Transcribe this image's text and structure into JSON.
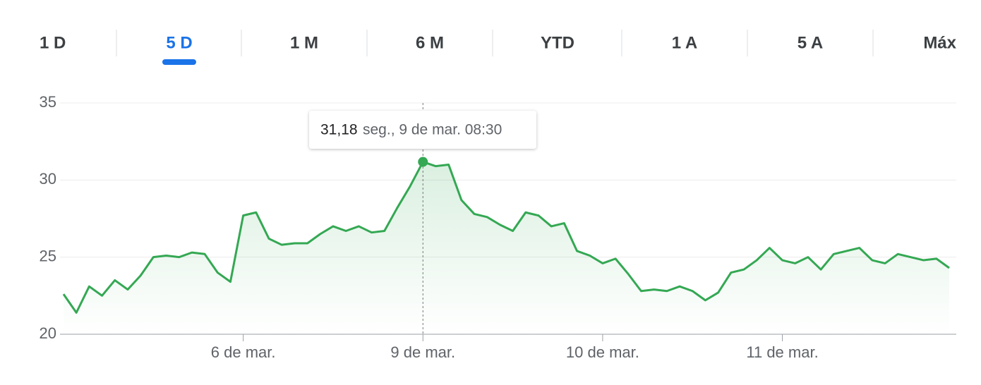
{
  "tabs": {
    "items": [
      "1 D",
      "5 D",
      "1 M",
      "6 M",
      "YTD",
      "1 A",
      "5 A",
      "Máx"
    ],
    "active": 1
  },
  "chart_data": {
    "type": "line",
    "color": "#34a853",
    "categories": [
      null,
      null,
      null,
      null,
      null,
      null,
      null,
      null,
      null,
      null,
      null,
      null,
      null,
      null,
      "6 de mar.",
      null,
      null,
      null,
      null,
      null,
      null,
      null,
      null,
      null,
      null,
      null,
      null,
      null,
      "9 de mar.",
      null,
      null,
      null,
      null,
      null,
      null,
      null,
      null,
      null,
      null,
      null,
      null,
      null,
      "10 de mar.",
      null,
      null,
      null,
      null,
      null,
      null,
      null,
      null,
      null,
      null,
      null,
      null,
      null,
      "11 de mar.",
      null,
      null,
      null,
      null,
      null,
      null,
      null,
      null,
      null,
      null,
      null,
      null,
      null
    ],
    "values": [
      22.6,
      21.4,
      23.1,
      22.5,
      23.5,
      22.9,
      23.8,
      25.0,
      25.1,
      25.0,
      25.3,
      25.2,
      24.0,
      23.4,
      27.7,
      27.9,
      26.2,
      25.8,
      25.9,
      25.9,
      26.5,
      27.0,
      26.7,
      27.0,
      26.6,
      26.7,
      28.2,
      29.6,
      31.18,
      30.9,
      31.0,
      28.7,
      27.8,
      27.6,
      27.1,
      26.7,
      27.9,
      27.7,
      27.0,
      27.2,
      25.4,
      25.1,
      24.6,
      24.9,
      23.9,
      22.8,
      22.9,
      22.8,
      23.1,
      22.8,
      22.2,
      22.7,
      24.0,
      24.2,
      24.8,
      25.6,
      24.8,
      24.6,
      25.0,
      24.2,
      25.2,
      25.4,
      25.6,
      24.8,
      24.6,
      25.2,
      25.0,
      24.8,
      24.9,
      24.3
    ],
    "ylim": [
      20,
      35
    ],
    "yticks": [
      20,
      25,
      30,
      35
    ],
    "grid": true,
    "tooltip": {
      "value": 31.18,
      "value_label": "31,18",
      "label": "seg., 9 de mar. 08:30"
    }
  }
}
